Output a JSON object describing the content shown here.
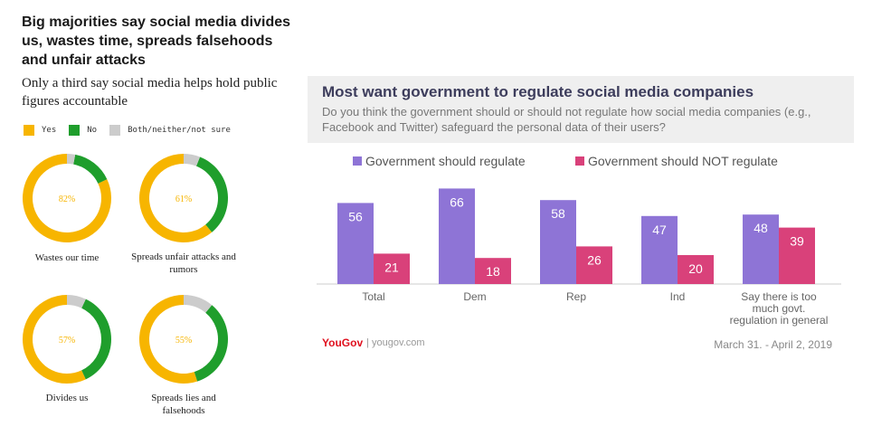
{
  "left_panel": {
    "title": "Big majorities say social media divides us, wastes time, spreads falsehoods and unfair attacks",
    "subtitle": "Only a third say social media helps hold public figures accountable",
    "legend": [
      {
        "label": "Yes",
        "color": "#f7b500"
      },
      {
        "label": "No",
        "color": "#1f9e2c"
      },
      {
        "label": "Both/neither/not sure",
        "color": "#cccccc"
      }
    ],
    "colors": {
      "yes": "#f7b500",
      "no": "#1f9e2c",
      "other": "#cccccc"
    }
  },
  "chart_data": [
    {
      "type": "pie",
      "style": "donut",
      "title": "Wastes our time",
      "slices": [
        {
          "label": "Yes",
          "value": 82
        },
        {
          "label": "No",
          "value": 15
        },
        {
          "label": "Both/neither/not sure",
          "value": 3
        }
      ],
      "center_label": "82%"
    },
    {
      "type": "pie",
      "style": "donut",
      "title": "Spreads unfair attacks and rumors",
      "slices": [
        {
          "label": "Yes",
          "value": 61
        },
        {
          "label": "No",
          "value": 33
        },
        {
          "label": "Both/neither/not sure",
          "value": 6
        }
      ],
      "center_label": "61%"
    },
    {
      "type": "pie",
      "style": "donut",
      "title": "Divides us",
      "slices": [
        {
          "label": "Yes",
          "value": 57
        },
        {
          "label": "No",
          "value": 36
        },
        {
          "label": "Both/neither/not sure",
          "value": 7
        }
      ],
      "center_label": "57%"
    },
    {
      "type": "pie",
      "style": "donut",
      "title": "Spreads lies and falsehoods",
      "slices": [
        {
          "label": "Yes",
          "value": 55
        },
        {
          "label": "No",
          "value": 34
        },
        {
          "label": "Both/neither/not sure",
          "value": 11
        }
      ],
      "center_label": "55%"
    },
    {
      "type": "bar",
      "title": "Most want government to regulate social media companies",
      "subtitle": "Do you think the government should or should not regulate how social media companies (e.g., Facebook and Twitter) safeguard the personal data of their users?",
      "categories": [
        "Total",
        "Dem",
        "Rep",
        "Ind",
        "Say there is too much govt. regulation in general"
      ],
      "series": [
        {
          "name": "Government should regulate",
          "color": "#8e74d6",
          "values": [
            56,
            66,
            58,
            47,
            48
          ]
        },
        {
          "name": "Government should NOT regulate",
          "color": "#d9417a",
          "values": [
            21,
            18,
            26,
            20,
            39
          ]
        }
      ],
      "ylim": [
        0,
        70
      ],
      "source": "yougov.com",
      "brand": "YouGov",
      "date": "March 31. - April 2, 2019"
    }
  ]
}
